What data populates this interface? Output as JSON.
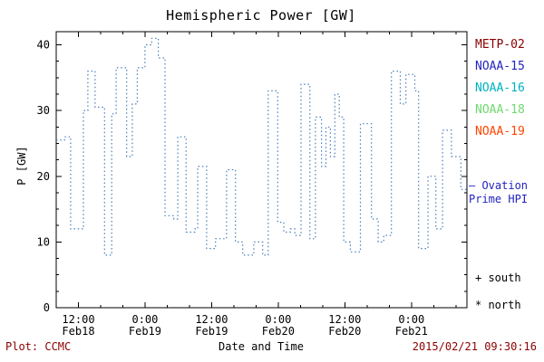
{
  "chart_data": {
    "type": "line",
    "style": "step-dotted",
    "title": "Hemispheric Power [GW]",
    "xlabel": "Date and Time",
    "ylabel": "P [GW]",
    "xlim": [
      8,
      82
    ],
    "ylim": [
      0,
      42
    ],
    "grid": false,
    "legend_position": "right-outside",
    "yticks": [
      0,
      10,
      20,
      30,
      40
    ],
    "xticks": [
      {
        "t": 12,
        "time": "12:00",
        "date": "Feb18"
      },
      {
        "t": 24,
        "time": "0:00",
        "date": "Feb19"
      },
      {
        "t": 36,
        "time": "12:00",
        "date": "Feb19"
      },
      {
        "t": 48,
        "time": "0:00",
        "date": "Feb20"
      },
      {
        "t": 60,
        "time": "12:00",
        "date": "Feb20"
      },
      {
        "t": 72,
        "time": "0:00",
        "date": "Feb21"
      }
    ],
    "series": [
      {
        "name": "Ovation Prime HPI",
        "color": "#4a7ebb",
        "x": [
          8,
          9.5,
          10.6,
          12.9,
          13.7,
          15.0,
          16.7,
          18.0,
          18.8,
          20.7,
          21.7,
          22.6,
          24.0,
          25.2,
          26.4,
          27.6,
          29.2,
          29.9,
          31.4,
          33.0,
          33.5,
          35.1,
          36.7,
          38.7,
          40.3,
          41.6,
          43.6,
          45.2,
          46.2,
          47.9,
          49.0,
          50.2,
          51.0,
          52.1,
          53.7,
          54.7,
          55.8,
          56.6,
          57.4,
          58.2,
          59.0,
          59.8,
          61.0,
          62.8,
          64.8,
          66.0,
          67.0,
          68.4,
          70.0,
          71.0,
          72.6,
          73.3,
          75.0,
          76.4,
          77.6,
          79.2,
          80.9,
          82
        ],
        "y": [
          25.5,
          26,
          12,
          30,
          36,
          30.5,
          8,
          29.5,
          36.5,
          23,
          31,
          36.5,
          40,
          41,
          38,
          14,
          13.5,
          26,
          11.5,
          12,
          21.5,
          9,
          10.5,
          21,
          10,
          8,
          10,
          8,
          33,
          13,
          11.5,
          12,
          11,
          34,
          10.5,
          29,
          21.5,
          27.5,
          23,
          32.5,
          29,
          10,
          8.5,
          28,
          13.5,
          10,
          11,
          36,
          31,
          35.5,
          33,
          9,
          20,
          12,
          27,
          23,
          18,
          18
        ]
      }
    ]
  },
  "legend": {
    "items": [
      {
        "label": "METP-02",
        "color": "#8b0000"
      },
      {
        "label": "NOAA-15",
        "color": "#2323bf"
      },
      {
        "label": "NOAA-16",
        "color": "#00b2bf"
      },
      {
        "label": "NOAA-18",
        "color": "#70d970"
      },
      {
        "label": "NOAA-19",
        "color": "#ff4500"
      }
    ]
  },
  "annotations": {
    "ovation": {
      "line1": "— Ovation",
      "line2": "Prime HPI",
      "color": "#2323bf"
    },
    "south": "+ south",
    "north": "* north"
  },
  "footer": {
    "left": "Plot: CCMC",
    "right": "2015/02/21 09:30:16",
    "color": "#8b0000"
  }
}
